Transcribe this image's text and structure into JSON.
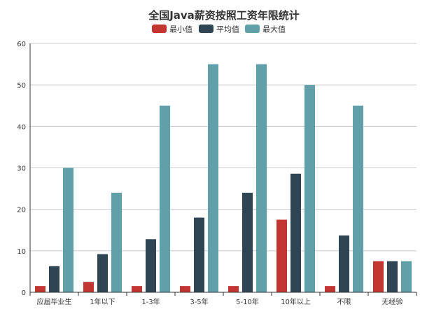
{
  "chart_data": {
    "type": "bar",
    "title": "全国Java薪资按照工资年限统计",
    "xlabel": "",
    "ylabel": "",
    "ylim": [
      0,
      60
    ],
    "yticks": [
      0,
      10,
      20,
      30,
      40,
      50,
      60
    ],
    "grid": true,
    "legend_position": "top-center",
    "categories": [
      "应届毕业生",
      "1年以下",
      "1-3年",
      "3-5年",
      "5-10年",
      "10年以上",
      "不限",
      "无经验"
    ],
    "series": [
      {
        "name": "最小值",
        "color": "#c23531",
        "values": [
          1.5,
          2.5,
          1.5,
          1.5,
          1.5,
          17.5,
          1.5,
          7.5
        ]
      },
      {
        "name": "平均值",
        "color": "#2f4554",
        "values": [
          6.3,
          9.2,
          12.8,
          18,
          24,
          28.6,
          13.7,
          7.5
        ]
      },
      {
        "name": "最大值",
        "color": "#61a0a8",
        "values": [
          30,
          24,
          45,
          55,
          55,
          50,
          45,
          7.5
        ]
      }
    ]
  }
}
